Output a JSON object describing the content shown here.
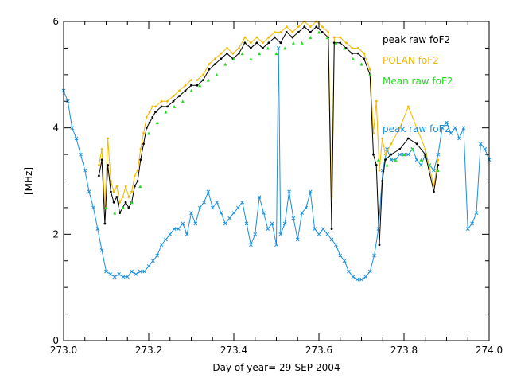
{
  "chart_data": {
    "type": "line",
    "title": "",
    "xlabel": "Day of year= 29-SEP-2004",
    "ylabel": "[MHz]",
    "xlim": [
      273.0,
      274.0
    ],
    "ylim": [
      0,
      6
    ],
    "x_ticks": [
      "273.0",
      "273.2",
      "273.4",
      "273.6",
      "273.8",
      "274.0"
    ],
    "y_ticks": [
      "0",
      "2",
      "4",
      "6"
    ],
    "legend_placement": "top-right",
    "series": [
      {
        "name": "peak raw foF2",
        "color": "#000000",
        "x": [
          273.083,
          273.09,
          273.097,
          273.104,
          273.111,
          273.118,
          273.125,
          273.132,
          273.139,
          273.146,
          273.153,
          273.16,
          273.167,
          273.174,
          273.181,
          273.188,
          273.195,
          273.202,
          273.209,
          273.216,
          273.23,
          273.244,
          273.258,
          273.272,
          273.286,
          273.3,
          273.314,
          273.328,
          273.342,
          273.356,
          273.37,
          273.384,
          273.398,
          273.412,
          273.426,
          273.44,
          273.454,
          273.468,
          273.482,
          273.496,
          273.51,
          273.524,
          273.538,
          273.552,
          273.566,
          273.58,
          273.594,
          273.608,
          273.622,
          273.63,
          273.636,
          273.65,
          273.664,
          273.678,
          273.692,
          273.706,
          273.72,
          273.728,
          273.735,
          273.742,
          273.749,
          273.756,
          273.77,
          273.79,
          273.81,
          273.83,
          273.85,
          273.87,
          273.88
        ],
        "y": [
          3.1,
          3.4,
          2.2,
          3.3,
          2.8,
          2.6,
          2.7,
          2.4,
          2.5,
          2.6,
          2.5,
          2.6,
          2.9,
          3.0,
          3.4,
          3.7,
          4.0,
          4.1,
          4.2,
          4.3,
          4.4,
          4.4,
          4.5,
          4.6,
          4.7,
          4.8,
          4.8,
          4.9,
          5.1,
          5.2,
          5.3,
          5.4,
          5.3,
          5.4,
          5.6,
          5.5,
          5.6,
          5.5,
          5.6,
          5.7,
          5.6,
          5.8,
          5.7,
          5.8,
          5.9,
          5.8,
          5.9,
          5.8,
          5.7,
          2.1,
          5.6,
          5.6,
          5.5,
          5.4,
          5.4,
          5.3,
          5.0,
          3.5,
          3.3,
          1.8,
          3.0,
          3.4,
          3.5,
          3.6,
          3.8,
          3.7,
          3.5,
          2.8,
          3.3
        ]
      },
      {
        "name": "POLAN foF2",
        "color": "#f2b800",
        "x": [
          273.083,
          273.09,
          273.097,
          273.104,
          273.111,
          273.118,
          273.125,
          273.132,
          273.139,
          273.146,
          273.153,
          273.16,
          273.167,
          273.174,
          273.181,
          273.188,
          273.195,
          273.202,
          273.209,
          273.216,
          273.23,
          273.244,
          273.258,
          273.272,
          273.286,
          273.3,
          273.314,
          273.328,
          273.342,
          273.356,
          273.37,
          273.384,
          273.398,
          273.412,
          273.426,
          273.44,
          273.454,
          273.468,
          273.482,
          273.496,
          273.51,
          273.524,
          273.538,
          273.552,
          273.566,
          273.58,
          273.594,
          273.608,
          273.622,
          273.63,
          273.636,
          273.65,
          273.664,
          273.678,
          273.692,
          273.706,
          273.72,
          273.728,
          273.735,
          273.742,
          273.749,
          273.756,
          273.77,
          273.79,
          273.81,
          273.83,
          273.85,
          273.87,
          273.88
        ],
        "y": [
          3.3,
          3.6,
          2.5,
          3.8,
          3.0,
          2.8,
          2.9,
          2.6,
          2.7,
          2.9,
          2.7,
          2.8,
          3.1,
          3.2,
          3.6,
          3.9,
          4.2,
          4.3,
          4.4,
          4.4,
          4.5,
          4.5,
          4.6,
          4.7,
          4.8,
          4.9,
          4.9,
          5.0,
          5.2,
          5.3,
          5.4,
          5.5,
          5.4,
          5.5,
          5.7,
          5.6,
          5.7,
          5.6,
          5.7,
          5.8,
          5.8,
          5.9,
          5.8,
          5.9,
          6.0,
          5.9,
          6.0,
          5.9,
          5.8,
          2.7,
          5.7,
          5.7,
          5.6,
          5.5,
          5.5,
          5.4,
          5.1,
          3.9,
          4.5,
          3.2,
          3.8,
          3.5,
          3.7,
          4.0,
          4.4,
          4.0,
          3.6,
          2.9,
          3.4
        ]
      },
      {
        "name": "Mean raw foF2",
        "color": "#22dd22",
        "x": [
          273.1,
          273.12,
          273.14,
          273.16,
          273.18,
          273.2,
          273.22,
          273.24,
          273.26,
          273.28,
          273.3,
          273.32,
          273.34,
          273.36,
          273.38,
          273.4,
          273.42,
          273.44,
          273.46,
          273.48,
          273.5,
          273.52,
          273.54,
          273.56,
          273.58,
          273.6,
          273.62,
          273.64,
          273.66,
          273.68,
          273.7,
          273.72,
          273.74,
          273.76,
          273.78,
          273.8,
          273.82,
          273.84,
          273.86,
          273.88
        ],
        "y": [
          2.5,
          2.4,
          2.5,
          2.6,
          2.9,
          3.9,
          4.1,
          4.3,
          4.4,
          4.5,
          4.7,
          4.8,
          4.9,
          5.0,
          5.2,
          5.3,
          5.4,
          5.3,
          5.4,
          5.5,
          5.4,
          5.5,
          5.6,
          5.6,
          5.7,
          5.8,
          5.7,
          5.6,
          5.5,
          5.3,
          5.2,
          5.0,
          3.4,
          3.3,
          3.4,
          3.5,
          3.6,
          3.4,
          3.3,
          3.2
        ]
      },
      {
        "name": "peak raw foF2",
        "color": "#1a8fdc",
        "x": [
          273.0,
          273.01,
          273.02,
          273.03,
          273.04,
          273.05,
          273.06,
          273.07,
          273.08,
          273.09,
          273.1,
          273.11,
          273.12,
          273.13,
          273.14,
          273.15,
          273.16,
          273.17,
          273.18,
          273.19,
          273.2,
          273.21,
          273.22,
          273.23,
          273.24,
          273.25,
          273.26,
          273.27,
          273.28,
          273.29,
          273.3,
          273.31,
          273.32,
          273.33,
          273.34,
          273.35,
          273.36,
          273.37,
          273.38,
          273.39,
          273.4,
          273.41,
          273.42,
          273.43,
          273.44,
          273.45,
          273.46,
          273.47,
          273.48,
          273.49,
          273.5,
          273.505,
          273.51,
          273.52,
          273.53,
          273.54,
          273.55,
          273.56,
          273.57,
          273.58,
          273.59,
          273.6,
          273.61,
          273.62,
          273.63,
          273.64,
          273.65,
          273.66,
          273.67,
          273.68,
          273.69,
          273.7,
          273.71,
          273.72,
          273.73,
          273.74,
          273.75,
          273.76,
          273.77,
          273.78,
          273.79,
          273.8,
          273.81,
          273.82,
          273.83,
          273.84,
          273.85,
          273.86,
          273.87,
          273.88,
          273.89,
          273.9,
          273.91,
          273.92,
          273.93,
          273.94,
          273.95,
          273.96,
          273.97,
          273.98,
          273.99,
          274.0
        ],
        "y": [
          4.7,
          4.5,
          4.0,
          3.8,
          3.5,
          3.2,
          2.8,
          2.5,
          2.1,
          1.7,
          1.3,
          1.25,
          1.2,
          1.25,
          1.2,
          1.2,
          1.3,
          1.25,
          1.3,
          1.3,
          1.4,
          1.5,
          1.6,
          1.8,
          1.9,
          2.0,
          2.1,
          2.1,
          2.2,
          2.0,
          2.4,
          2.2,
          2.5,
          2.6,
          2.8,
          2.5,
          2.6,
          2.4,
          2.2,
          2.3,
          2.4,
          2.5,
          2.6,
          2.2,
          1.8,
          2.0,
          2.7,
          2.4,
          2.1,
          2.2,
          1.8,
          5.5,
          2.0,
          2.2,
          2.8,
          2.3,
          1.9,
          2.4,
          2.5,
          2.8,
          2.1,
          2.0,
          2.1,
          2.0,
          1.9,
          1.8,
          1.6,
          1.5,
          1.3,
          1.2,
          1.15,
          1.15,
          1.2,
          1.3,
          1.6,
          2.1,
          3.2,
          3.6,
          3.4,
          3.4,
          3.5,
          3.5,
          3.5,
          3.6,
          3.4,
          3.3,
          3.5,
          3.3,
          3.2,
          3.5,
          4.0,
          4.1,
          3.9,
          4.0,
          3.8,
          4.0,
          2.1,
          2.2,
          2.4,
          3.7,
          3.6,
          3.4
        ]
      }
    ]
  }
}
